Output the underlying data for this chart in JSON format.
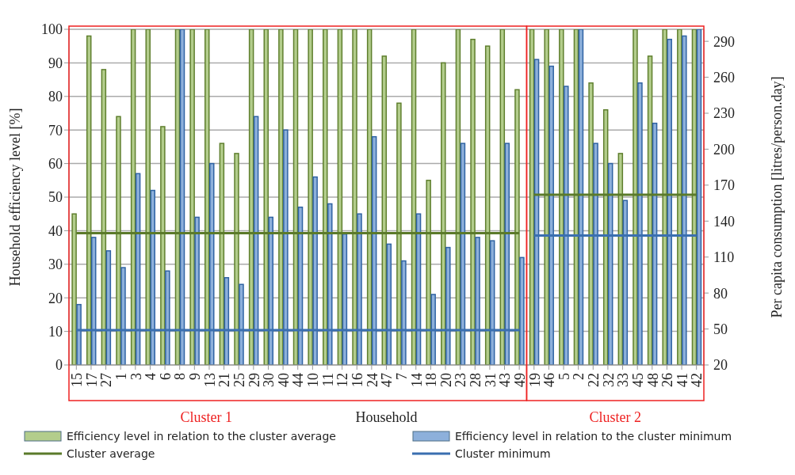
{
  "chart_data": {
    "type": "bar",
    "xlabel": "Household",
    "ylabel": "Household efficiency level [%]",
    "y2label": "Per capita consumption [litres/person.day]",
    "categories": [
      "15",
      "17",
      "27",
      "1",
      "3",
      "4",
      "6",
      "8",
      "9",
      "13",
      "21",
      "25",
      "29",
      "30",
      "40",
      "44",
      "10",
      "11",
      "12",
      "16",
      "24",
      "47",
      "7",
      "14",
      "18",
      "20",
      "23",
      "28",
      "31",
      "43",
      "49",
      "19",
      "46",
      "5",
      "2",
      "22",
      "32",
      "33",
      "45",
      "48",
      "26",
      "41",
      "42"
    ],
    "series": [
      {
        "name": "Efficiency level in relation to the cluster average",
        "color": "#b3cd8c",
        "values": [
          45,
          98,
          88,
          74,
          100,
          100,
          71,
          100,
          100,
          100,
          66,
          63,
          100,
          100,
          100,
          100,
          100,
          100,
          100,
          100,
          100,
          92,
          78,
          100,
          55,
          90,
          100,
          97,
          95,
          100,
          82,
          100,
          100,
          100,
          100,
          84,
          76,
          63,
          100,
          92,
          100,
          100,
          100
        ]
      },
      {
        "name": "Efficiency level in relation to the cluster minimum",
        "color": "#8db0db",
        "values": [
          18,
          38,
          34,
          29,
          57,
          52,
          28,
          100,
          44,
          60,
          26,
          24,
          74,
          44,
          70,
          47,
          56,
          48,
          39,
          45,
          68,
          36,
          31,
          45,
          21,
          35,
          66,
          38,
          37,
          66,
          32,
          91,
          89,
          83,
          100,
          66,
          60,
          49,
          84,
          72,
          97,
          98,
          100
        ]
      },
      {
        "name": "Cluster average",
        "type": "line",
        "axis": "y2",
        "color": "#5b7a2a",
        "values": [
          130,
          130,
          130,
          130,
          130,
          130,
          130,
          130,
          130,
          130,
          130,
          130,
          130,
          130,
          130,
          130,
          130,
          130,
          130,
          130,
          130,
          130,
          130,
          130,
          130,
          130,
          130,
          130,
          130,
          130,
          130,
          null,
          null,
          null,
          null,
          null,
          null,
          null,
          null,
          null,
          null,
          null,
          null
        ]
      },
      {
        "type": "line",
        "axis": "y2",
        "color": "#5b7a2a",
        "values": [
          null,
          null,
          null,
          null,
          null,
          null,
          null,
          null,
          null,
          null,
          null,
          null,
          null,
          null,
          null,
          null,
          null,
          null,
          null,
          null,
          null,
          null,
          null,
          null,
          null,
          null,
          null,
          null,
          null,
          null,
          null,
          162,
          162,
          162,
          162,
          162,
          162,
          162,
          162,
          162,
          162,
          162,
          162
        ]
      },
      {
        "name": "Cluster minimum",
        "type": "line",
        "axis": "y2",
        "color": "#3a6fb0",
        "values": [
          49,
          49,
          49,
          49,
          49,
          49,
          49,
          49,
          49,
          49,
          49,
          49,
          49,
          49,
          49,
          49,
          49,
          49,
          49,
          49,
          49,
          49,
          49,
          49,
          49,
          49,
          49,
          49,
          49,
          49,
          49,
          null,
          null,
          null,
          null,
          null,
          null,
          null,
          null,
          null,
          null,
          null,
          null
        ]
      },
      {
        "type": "line",
        "axis": "y2",
        "color": "#3a6fb0",
        "values": [
          null,
          null,
          null,
          null,
          null,
          null,
          null,
          null,
          null,
          null,
          null,
          null,
          null,
          null,
          null,
          null,
          null,
          null,
          null,
          null,
          null,
          null,
          null,
          null,
          null,
          null,
          null,
          null,
          null,
          null,
          null,
          128,
          128,
          128,
          128,
          128,
          128,
          128,
          128,
          128,
          128,
          128,
          128
        ]
      }
    ],
    "ylim": [
      0,
      100
    ],
    "yticks": [
      0,
      10,
      20,
      30,
      40,
      50,
      60,
      70,
      80,
      90,
      100
    ],
    "y2lim": [
      20,
      300
    ],
    "y2ticks": [
      20,
      50,
      80,
      110,
      140,
      170,
      200,
      230,
      260,
      290
    ],
    "annotations": [
      "Cluster 1",
      "Cluster 2"
    ],
    "grid": "y",
    "legend": "bottom",
    "marker": "none",
    "line_style": "solid"
  }
}
